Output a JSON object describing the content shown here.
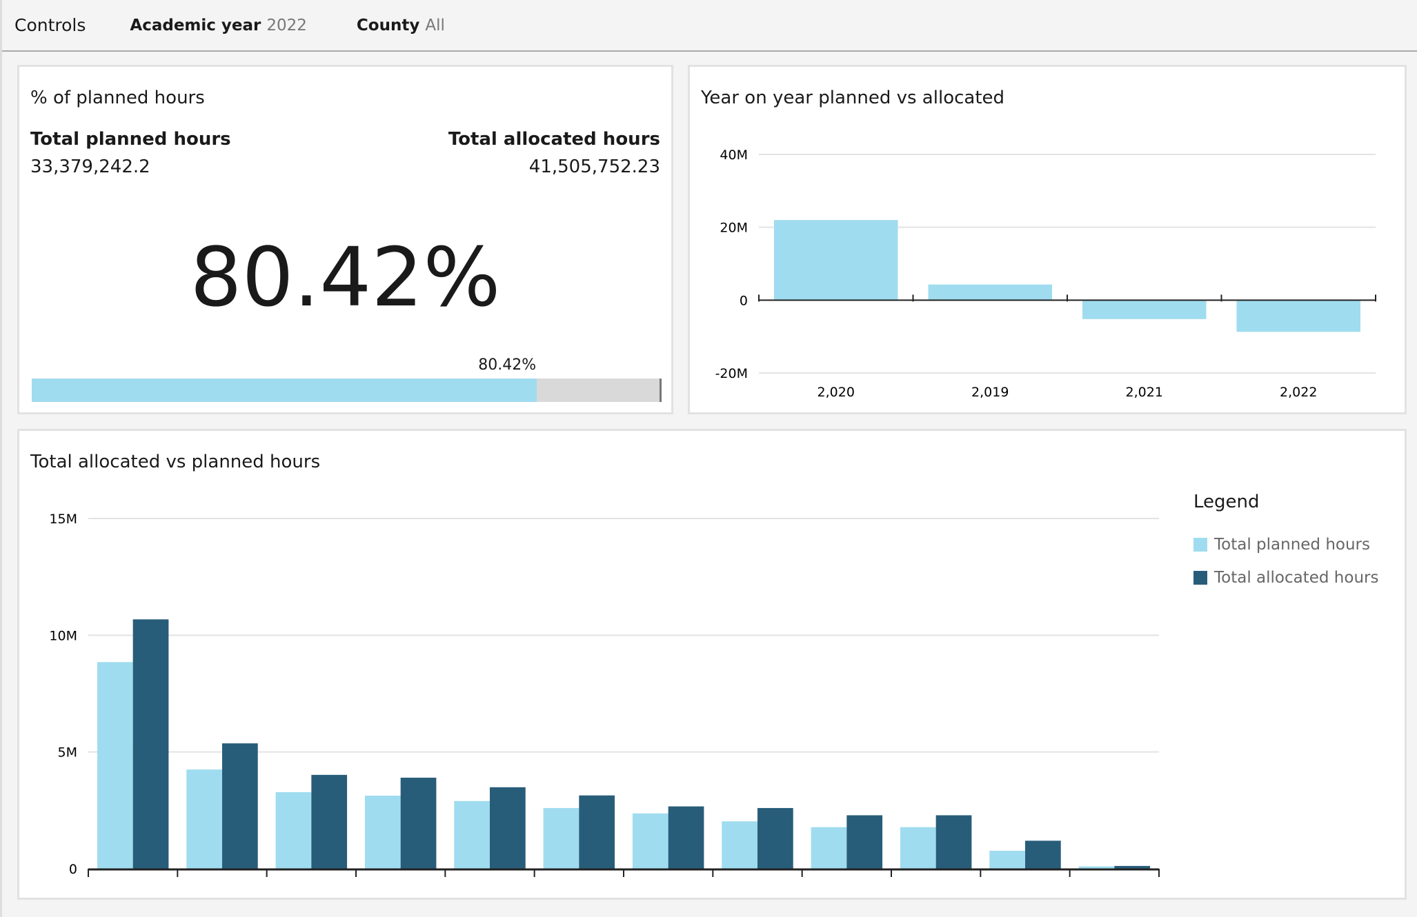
{
  "controls": {
    "title": "Controls",
    "filters": [
      {
        "label": "Academic year",
        "value": "2022"
      },
      {
        "label": "County",
        "value": "All"
      }
    ]
  },
  "kpi": {
    "title": "% of planned hours",
    "planned_label": "Total planned hours",
    "planned_value": "33,379,242.2",
    "allocated_label": "Total allocated hours",
    "allocated_value": "41,505,752.23",
    "percent": "80.42%",
    "progress": 80.42,
    "colors": {
      "fill": "#a0dcef",
      "track": "#d9d9d9"
    }
  },
  "chart_data": [
    {
      "type": "bar",
      "title": "Year on year planned vs allocated",
      "categories": [
        "2,020",
        "2,019",
        "2,021",
        "2,022"
      ],
      "values": [
        22000000,
        4300000,
        -5200000,
        -8700000
      ],
      "yticks": [
        "40M",
        "20M",
        "0",
        "-20M"
      ],
      "ylim": [
        -20000000,
        40000000
      ],
      "grid": true,
      "color": "#a0dcef"
    },
    {
      "type": "bar",
      "title": "Total allocated vs planned hours",
      "categories": [
        "",
        "",
        "",
        "",
        "",
        "",
        "",
        "",
        "",
        "",
        "",
        ""
      ],
      "series": [
        {
          "name": "Total planned hours",
          "color": "#a0dcef",
          "values": [
            8850000,
            4250000,
            3280000,
            3130000,
            2900000,
            2600000,
            2370000,
            2030000,
            1780000,
            1780000,
            770000,
            100000
          ]
        },
        {
          "name": "Total allocated hours",
          "color": "#285d7a",
          "values": [
            10680000,
            5370000,
            4020000,
            3900000,
            3490000,
            3140000,
            2670000,
            2600000,
            2290000,
            2290000,
            1200000,
            120000
          ]
        }
      ],
      "yticks": [
        "15M",
        "10M",
        "5M",
        "0"
      ],
      "ylim": [
        0,
        15000000
      ],
      "grid": true,
      "legend_title": "Legend",
      "legend_position": "right"
    }
  ]
}
